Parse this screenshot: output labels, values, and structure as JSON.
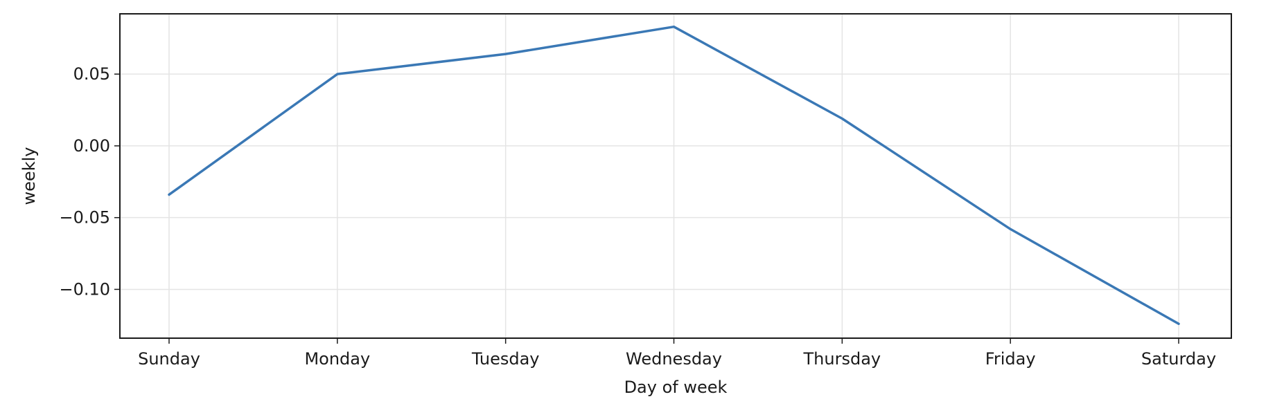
{
  "chart_data": {
    "type": "line",
    "title": "",
    "xlabel": "Day of week",
    "ylabel": "weekly",
    "categories": [
      "Sunday",
      "Monday",
      "Tuesday",
      "Wednesday",
      "Thursday",
      "Friday",
      "Saturday"
    ],
    "series": [
      {
        "values": [
          -0.034,
          0.05,
          0.064,
          0.083,
          0.019,
          -0.058,
          -0.124
        ],
        "color": "#3a78b5"
      }
    ],
    "ylim": [
      -0.134,
      0.092
    ],
    "yticks": [
      -0.1,
      -0.05,
      0.0,
      0.05
    ],
    "ytick_labels": [
      "−0.10",
      "−0.05",
      "0.00",
      "0.05"
    ],
    "grid": true,
    "legend": "none"
  }
}
